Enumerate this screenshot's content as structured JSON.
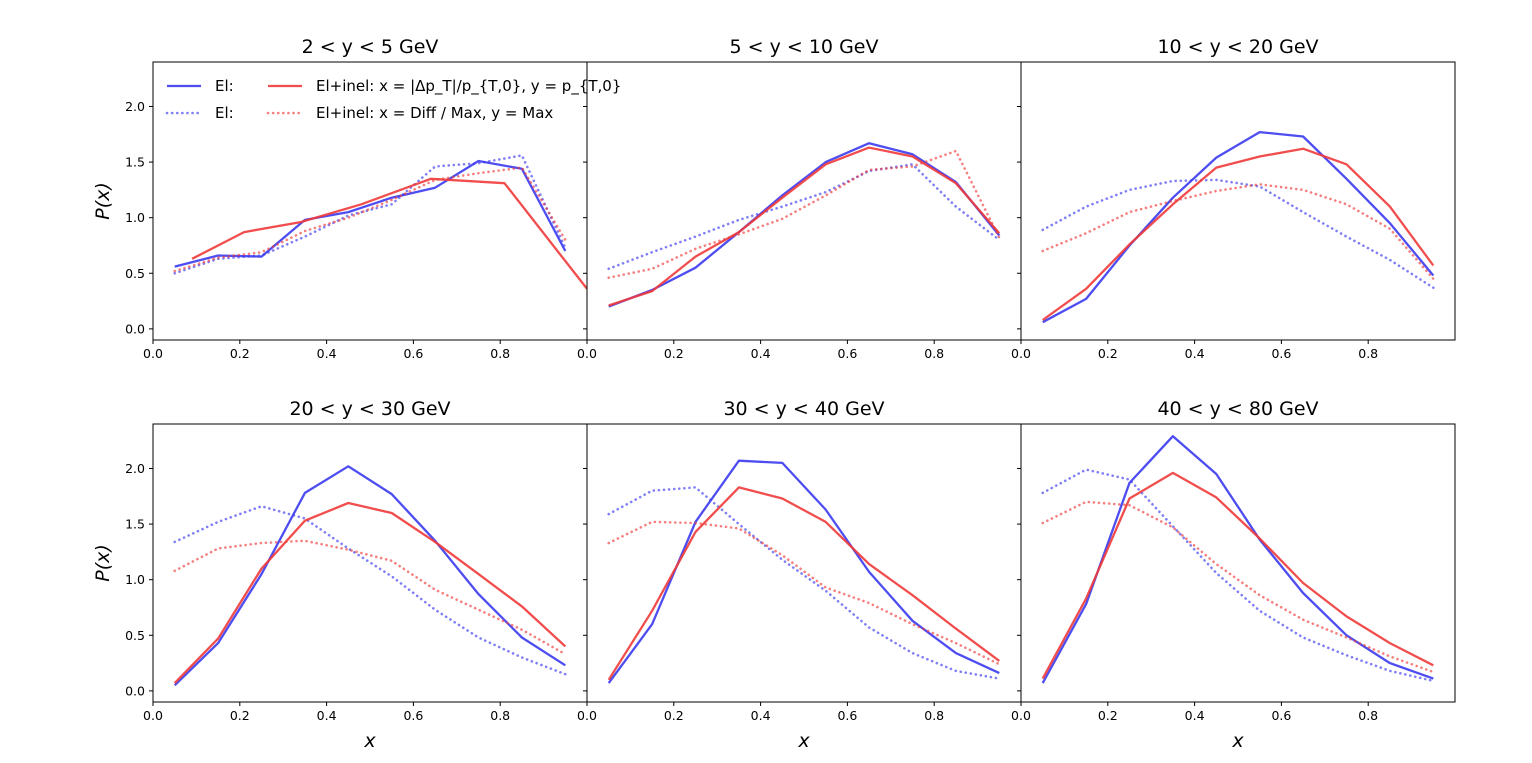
{
  "figure": {
    "xlabel": "x",
    "ylabel": "P(x)"
  },
  "colors": {
    "blue": "#3a3af0",
    "red": "#f03a3a"
  },
  "legend": {
    "placement": "upper-left of first panel",
    "entries": [
      {
        "label": "El:",
        "color": "blue",
        "style": "solid"
      },
      {
        "label": "El:",
        "color": "blue",
        "style": "dotted"
      },
      {
        "label": "El+inel: x = |Δp_T|/p_{T,0}, y = p_{T,0}",
        "color": "red",
        "style": "solid"
      },
      {
        "label": "El+inel: x = Diff / Max, y = Max",
        "color": "red",
        "style": "dotted"
      }
    ]
  },
  "chart_data": [
    {
      "type": "line",
      "title": "2 < y < 5 GeV",
      "xlim": [
        0,
        1
      ],
      "ylim": [
        -0.1,
        2.4
      ],
      "xticks": [
        0.0,
        0.2,
        0.4,
        0.6,
        0.8
      ],
      "yticks": [
        0.0,
        0.5,
        1.0,
        1.5,
        2.0
      ],
      "series": [
        {
          "color": "blue",
          "style": "solid",
          "x": [
            0.05,
            0.15,
            0.25,
            0.35,
            0.45,
            0.55,
            0.65,
            0.75,
            0.85,
            0.95
          ],
          "y": [
            0.56,
            0.66,
            0.65,
            0.98,
            1.05,
            1.18,
            1.27,
            1.51,
            1.44,
            0.7
          ]
        },
        {
          "color": "blue",
          "style": "dotted",
          "x": [
            0.05,
            0.15,
            0.25,
            0.35,
            0.45,
            0.55,
            0.65,
            0.75,
            0.85,
            0.95
          ],
          "y": [
            0.5,
            0.63,
            0.66,
            0.83,
            1.02,
            1.12,
            1.46,
            1.49,
            1.56,
            0.73
          ]
        },
        {
          "color": "red",
          "style": "solid",
          "x": [
            0.09,
            0.21,
            0.34,
            0.48,
            0.64,
            0.81,
            1.0
          ],
          "y": [
            0.63,
            0.87,
            0.96,
            1.12,
            1.35,
            1.31,
            0.36
          ]
        },
        {
          "color": "red",
          "style": "dotted",
          "x": [
            0.05,
            0.15,
            0.25,
            0.35,
            0.45,
            0.55,
            0.65,
            0.75,
            0.85,
            0.95
          ],
          "y": [
            0.52,
            0.64,
            0.69,
            0.88,
            1.0,
            1.16,
            1.34,
            1.4,
            1.45,
            0.8
          ]
        }
      ]
    },
    {
      "type": "line",
      "title": "5 < y < 10 GeV",
      "xlim": [
        0,
        1
      ],
      "ylim": [
        -0.1,
        2.4
      ],
      "xticks": [
        0.0,
        0.2,
        0.4,
        0.6,
        0.8
      ],
      "yticks": [
        0.0,
        0.5,
        1.0,
        1.5,
        2.0
      ],
      "series": [
        {
          "color": "blue",
          "style": "solid",
          "x": [
            0.05,
            0.15,
            0.25,
            0.35,
            0.45,
            0.55,
            0.65,
            0.75,
            0.85,
            0.95
          ],
          "y": [
            0.2,
            0.35,
            0.55,
            0.87,
            1.2,
            1.5,
            1.67,
            1.57,
            1.32,
            0.84
          ]
        },
        {
          "color": "blue",
          "style": "dotted",
          "x": [
            0.05,
            0.15,
            0.25,
            0.35,
            0.45,
            0.55,
            0.65,
            0.75,
            0.85,
            0.95
          ],
          "y": [
            0.54,
            0.69,
            0.83,
            0.98,
            1.1,
            1.23,
            1.42,
            1.48,
            1.1,
            0.8
          ]
        },
        {
          "color": "red",
          "style": "solid",
          "x": [
            0.05,
            0.15,
            0.25,
            0.35,
            0.45,
            0.55,
            0.65,
            0.75,
            0.85,
            0.95
          ],
          "y": [
            0.21,
            0.34,
            0.65,
            0.87,
            1.18,
            1.48,
            1.63,
            1.55,
            1.31,
            0.86
          ]
        },
        {
          "color": "red",
          "style": "dotted",
          "x": [
            0.05,
            0.15,
            0.25,
            0.35,
            0.45,
            0.55,
            0.65,
            0.75,
            0.85,
            0.95
          ],
          "y": [
            0.46,
            0.54,
            0.72,
            0.85,
            0.99,
            1.2,
            1.43,
            1.46,
            1.6,
            0.82
          ]
        }
      ]
    },
    {
      "type": "line",
      "title": "10 < y < 20 GeV",
      "xlim": [
        0,
        1
      ],
      "ylim": [
        -0.1,
        2.4
      ],
      "xticks": [
        0.0,
        0.2,
        0.4,
        0.6,
        0.8
      ],
      "yticks": [
        0.0,
        0.5,
        1.0,
        1.5,
        2.0
      ],
      "series": [
        {
          "color": "blue",
          "style": "solid",
          "x": [
            0.05,
            0.15,
            0.25,
            0.35,
            0.45,
            0.55,
            0.65,
            0.75,
            0.85,
            0.95
          ],
          "y": [
            0.06,
            0.27,
            0.75,
            1.18,
            1.54,
            1.77,
            1.73,
            1.35,
            0.95,
            0.48
          ]
        },
        {
          "color": "blue",
          "style": "dotted",
          "x": [
            0.05,
            0.15,
            0.25,
            0.35,
            0.45,
            0.55,
            0.65,
            0.75,
            0.85,
            0.95
          ],
          "y": [
            0.89,
            1.1,
            1.25,
            1.33,
            1.34,
            1.28,
            1.05,
            0.83,
            0.62,
            0.37
          ]
        },
        {
          "color": "red",
          "style": "solid",
          "x": [
            0.05,
            0.15,
            0.25,
            0.35,
            0.45,
            0.55,
            0.65,
            0.75,
            0.85,
            0.95
          ],
          "y": [
            0.08,
            0.36,
            0.76,
            1.12,
            1.45,
            1.55,
            1.62,
            1.48,
            1.1,
            0.57
          ]
        },
        {
          "color": "red",
          "style": "dotted",
          "x": [
            0.05,
            0.15,
            0.25,
            0.35,
            0.45,
            0.55,
            0.65,
            0.75,
            0.85,
            0.95
          ],
          "y": [
            0.7,
            0.86,
            1.05,
            1.15,
            1.24,
            1.3,
            1.25,
            1.12,
            0.9,
            0.45
          ]
        }
      ]
    },
    {
      "type": "line",
      "title": "20 < y < 30 GeV",
      "xlim": [
        0,
        1
      ],
      "ylim": [
        -0.1,
        2.4
      ],
      "xticks": [
        0.0,
        0.2,
        0.4,
        0.6,
        0.8
      ],
      "yticks": [
        0.0,
        0.5,
        1.0,
        1.5,
        2.0
      ],
      "series": [
        {
          "color": "blue",
          "style": "solid",
          "x": [
            0.05,
            0.15,
            0.25,
            0.35,
            0.45,
            0.55,
            0.65,
            0.75,
            0.85,
            0.95
          ],
          "y": [
            0.05,
            0.43,
            1.05,
            1.78,
            2.02,
            1.77,
            1.35,
            0.87,
            0.48,
            0.23
          ]
        },
        {
          "color": "blue",
          "style": "dotted",
          "x": [
            0.05,
            0.15,
            0.25,
            0.35,
            0.45,
            0.55,
            0.65,
            0.75,
            0.85,
            0.95
          ],
          "y": [
            1.34,
            1.52,
            1.66,
            1.55,
            1.28,
            1.03,
            0.73,
            0.48,
            0.3,
            0.15
          ]
        },
        {
          "color": "red",
          "style": "solid",
          "x": [
            0.05,
            0.15,
            0.25,
            0.35,
            0.45,
            0.55,
            0.65,
            0.75,
            0.85,
            0.95
          ],
          "y": [
            0.07,
            0.47,
            1.1,
            1.53,
            1.69,
            1.6,
            1.34,
            1.05,
            0.76,
            0.4
          ]
        },
        {
          "color": "red",
          "style": "dotted",
          "x": [
            0.05,
            0.15,
            0.25,
            0.35,
            0.45,
            0.55,
            0.65,
            0.75,
            0.85,
            0.95
          ],
          "y": [
            1.08,
            1.28,
            1.33,
            1.35,
            1.27,
            1.17,
            0.91,
            0.73,
            0.55,
            0.33
          ]
        }
      ]
    },
    {
      "type": "line",
      "title": "30 < y < 40 GeV",
      "xlim": [
        0,
        1
      ],
      "ylim": [
        -0.1,
        2.4
      ],
      "xticks": [
        0.0,
        0.2,
        0.4,
        0.6,
        0.8
      ],
      "yticks": [
        0.0,
        0.5,
        1.0,
        1.5,
        2.0
      ],
      "series": [
        {
          "color": "blue",
          "style": "solid",
          "x": [
            0.05,
            0.15,
            0.25,
            0.35,
            0.45,
            0.55,
            0.65,
            0.75,
            0.85,
            0.95
          ],
          "y": [
            0.07,
            0.6,
            1.52,
            2.07,
            2.05,
            1.63,
            1.07,
            0.63,
            0.34,
            0.16
          ]
        },
        {
          "color": "blue",
          "style": "dotted",
          "x": [
            0.05,
            0.15,
            0.25,
            0.35,
            0.45,
            0.55,
            0.65,
            0.75,
            0.85,
            0.95
          ],
          "y": [
            1.59,
            1.8,
            1.83,
            1.5,
            1.18,
            0.9,
            0.57,
            0.34,
            0.18,
            0.11
          ]
        },
        {
          "color": "red",
          "style": "solid",
          "x": [
            0.05,
            0.15,
            0.25,
            0.35,
            0.45,
            0.55,
            0.65,
            0.75,
            0.85,
            0.95
          ],
          "y": [
            0.1,
            0.72,
            1.43,
            1.83,
            1.73,
            1.52,
            1.14,
            0.86,
            0.56,
            0.27
          ]
        },
        {
          "color": "red",
          "style": "dotted",
          "x": [
            0.05,
            0.15,
            0.25,
            0.35,
            0.45,
            0.55,
            0.65,
            0.75,
            0.85,
            0.95
          ],
          "y": [
            1.33,
            1.52,
            1.51,
            1.46,
            1.22,
            0.93,
            0.79,
            0.6,
            0.43,
            0.24
          ]
        }
      ]
    },
    {
      "type": "line",
      "title": "40 < y < 80 GeV",
      "xlim": [
        0,
        1
      ],
      "ylim": [
        -0.1,
        2.4
      ],
      "xticks": [
        0.0,
        0.2,
        0.4,
        0.6,
        0.8
      ],
      "yticks": [
        0.0,
        0.5,
        1.0,
        1.5,
        2.0
      ],
      "series": [
        {
          "color": "blue",
          "style": "solid",
          "x": [
            0.05,
            0.15,
            0.25,
            0.35,
            0.45,
            0.55,
            0.65,
            0.75,
            0.85,
            0.95
          ],
          "y": [
            0.07,
            0.78,
            1.87,
            2.29,
            1.95,
            1.36,
            0.88,
            0.5,
            0.25,
            0.11
          ]
        },
        {
          "color": "blue",
          "style": "dotted",
          "x": [
            0.05,
            0.15,
            0.25,
            0.35,
            0.45,
            0.55,
            0.65,
            0.75,
            0.85,
            0.95
          ],
          "y": [
            1.78,
            1.99,
            1.9,
            1.48,
            1.06,
            0.72,
            0.48,
            0.32,
            0.18,
            0.09
          ]
        },
        {
          "color": "red",
          "style": "solid",
          "x": [
            0.05,
            0.15,
            0.25,
            0.35,
            0.45,
            0.55,
            0.65,
            0.75,
            0.85,
            0.95
          ],
          "y": [
            0.11,
            0.83,
            1.73,
            1.96,
            1.74,
            1.37,
            0.97,
            0.67,
            0.43,
            0.23
          ]
        },
        {
          "color": "red",
          "style": "dotted",
          "x": [
            0.05,
            0.15,
            0.25,
            0.35,
            0.45,
            0.55,
            0.65,
            0.75,
            0.85,
            0.95
          ],
          "y": [
            1.51,
            1.7,
            1.67,
            1.47,
            1.14,
            0.86,
            0.64,
            0.48,
            0.31,
            0.17
          ]
        }
      ]
    }
  ]
}
